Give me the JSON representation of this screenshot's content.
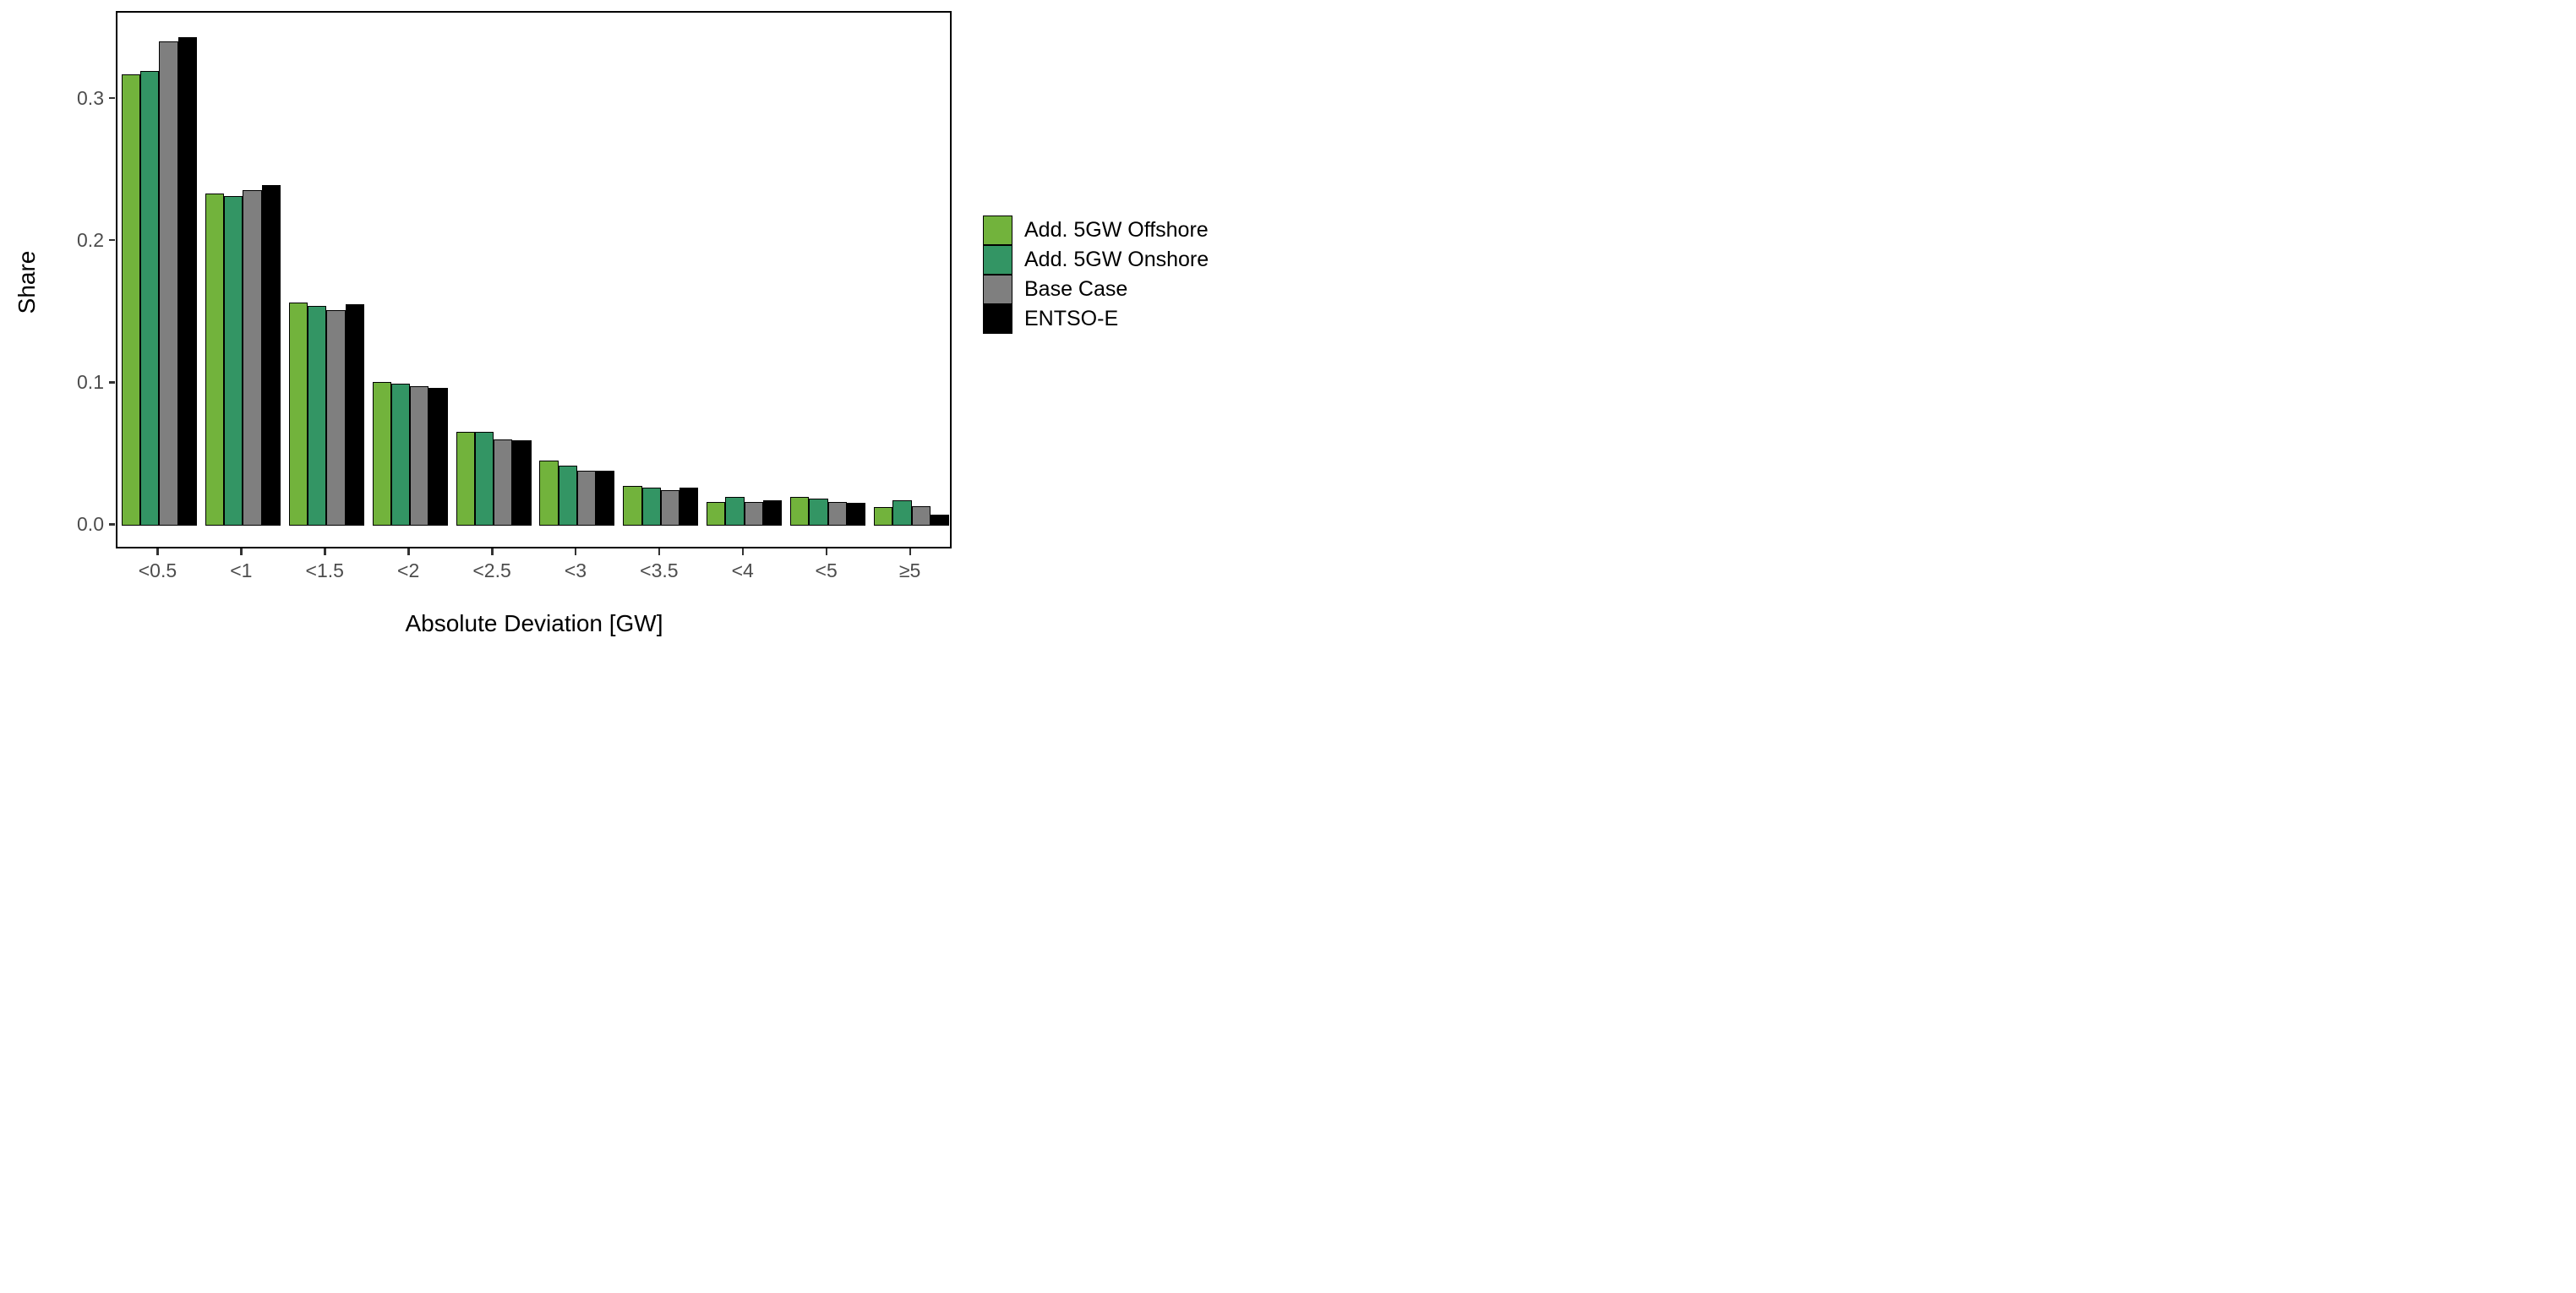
{
  "chart_data": {
    "type": "bar",
    "title": "",
    "xlabel": "Absolute Deviation [GW]",
    "ylabel": "Share",
    "categories": [
      "<0.5",
      "<1",
      "<1.5",
      "<2",
      "<2.5",
      "<3",
      "<3.5",
      "<4",
      "<5",
      "≥5"
    ],
    "series": [
      {
        "name": "Add. 5GW Offshore",
        "color": "#72b33c",
        "values": [
          0.318,
          0.234,
          0.157,
          0.101,
          0.066,
          0.046,
          0.028,
          0.017,
          0.02,
          0.013
        ]
      },
      {
        "name": "Add. 5GW Onshore",
        "color": "#339564",
        "values": [
          0.32,
          0.232,
          0.155,
          0.1,
          0.066,
          0.042,
          0.027,
          0.02,
          0.019,
          0.018
        ]
      },
      {
        "name": "Base Case",
        "color": "#7f7f7f",
        "values": [
          0.341,
          0.236,
          0.152,
          0.098,
          0.061,
          0.039,
          0.025,
          0.017,
          0.017,
          0.014
        ]
      },
      {
        "name": "ENTSO-E",
        "color": "#000000",
        "values": [
          0.344,
          0.24,
          0.156,
          0.097,
          0.06,
          0.039,
          0.027,
          0.018,
          0.016,
          0.008
        ]
      }
    ],
    "yticks": [
      "0.0",
      "0.1",
      "0.2",
      "0.3"
    ],
    "ytick_values": [
      0.0,
      0.1,
      0.2,
      0.3
    ],
    "ylim": [
      -0.0172,
      0.3612
    ],
    "grid": false,
    "legend_position": "right",
    "bar_border_color": "#000000",
    "axis_text_color": "#4d4d4d",
    "axis_title_color": "#000000"
  }
}
